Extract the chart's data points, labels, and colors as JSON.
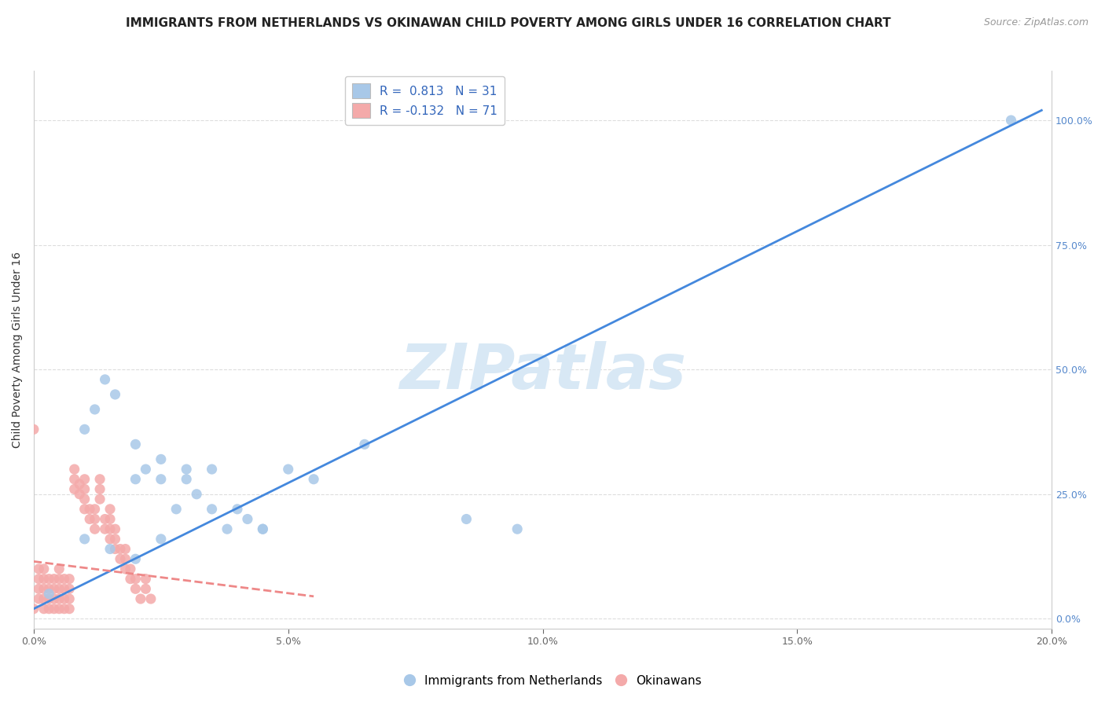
{
  "title": "IMMIGRANTS FROM NETHERLANDS VS OKINAWAN CHILD POVERTY AMONG GIRLS UNDER 16 CORRELATION CHART",
  "source": "Source: ZipAtlas.com",
  "ylabel": "Child Poverty Among Girls Under 16",
  "xlim": [
    0.0,
    0.2
  ],
  "ylim": [
    -0.02,
    1.1
  ],
  "x_ticks": [
    0.0,
    0.05,
    0.1,
    0.15,
    0.2
  ],
  "x_tick_labels": [
    "0.0%",
    "5.0%",
    "10.0%",
    "15.0%",
    "20.0%"
  ],
  "y_ticks_right": [
    0.0,
    0.25,
    0.5,
    0.75,
    1.0
  ],
  "y_tick_labels_right": [
    "0.0%",
    "25.0%",
    "50.0%",
    "75.0%",
    "100.0%"
  ],
  "blue_color": "#A8C8E8",
  "pink_color": "#F4AAAA",
  "blue_line_color": "#4488DD",
  "pink_line_color": "#EE8888",
  "legend_r_blue": "0.813",
  "legend_n_blue": "31",
  "legend_r_pink": "-0.132",
  "legend_n_pink": "71",
  "watermark": "ZIPatlas",
  "watermark_color": "#D8E8F5",
  "blue_scatter_x": [
    0.003,
    0.01,
    0.012,
    0.014,
    0.016,
    0.02,
    0.022,
    0.025,
    0.028,
    0.03,
    0.032,
    0.035,
    0.038,
    0.042,
    0.045,
    0.02,
    0.025,
    0.03,
    0.035,
    0.04,
    0.045,
    0.05,
    0.055,
    0.065,
    0.085,
    0.095,
    0.01,
    0.015,
    0.02,
    0.025,
    0.192
  ],
  "blue_scatter_y": [
    0.05,
    0.38,
    0.42,
    0.48,
    0.45,
    0.28,
    0.3,
    0.28,
    0.22,
    0.28,
    0.25,
    0.22,
    0.18,
    0.2,
    0.18,
    0.35,
    0.32,
    0.3,
    0.3,
    0.22,
    0.18,
    0.3,
    0.28,
    0.35,
    0.2,
    0.18,
    0.16,
    0.14,
    0.12,
    0.16,
    1.0
  ],
  "pink_scatter_x": [
    0.0,
    0.001,
    0.001,
    0.001,
    0.001,
    0.002,
    0.002,
    0.002,
    0.002,
    0.002,
    0.003,
    0.003,
    0.003,
    0.003,
    0.004,
    0.004,
    0.004,
    0.004,
    0.005,
    0.005,
    0.005,
    0.005,
    0.005,
    0.006,
    0.006,
    0.006,
    0.006,
    0.007,
    0.007,
    0.007,
    0.007,
    0.008,
    0.008,
    0.008,
    0.009,
    0.009,
    0.01,
    0.01,
    0.01,
    0.01,
    0.011,
    0.011,
    0.012,
    0.012,
    0.012,
    0.013,
    0.013,
    0.013,
    0.014,
    0.014,
    0.015,
    0.015,
    0.015,
    0.015,
    0.016,
    0.016,
    0.016,
    0.017,
    0.017,
    0.018,
    0.018,
    0.018,
    0.019,
    0.019,
    0.02,
    0.02,
    0.021,
    0.022,
    0.022,
    0.023,
    0.0
  ],
  "pink_scatter_y": [
    0.38,
    0.06,
    0.04,
    0.08,
    0.1,
    0.02,
    0.04,
    0.06,
    0.08,
    0.1,
    0.02,
    0.04,
    0.06,
    0.08,
    0.02,
    0.04,
    0.06,
    0.08,
    0.02,
    0.04,
    0.06,
    0.08,
    0.1,
    0.02,
    0.04,
    0.06,
    0.08,
    0.02,
    0.04,
    0.06,
    0.08,
    0.26,
    0.28,
    0.3,
    0.25,
    0.27,
    0.22,
    0.24,
    0.26,
    0.28,
    0.2,
    0.22,
    0.18,
    0.2,
    0.22,
    0.26,
    0.28,
    0.24,
    0.18,
    0.2,
    0.16,
    0.18,
    0.2,
    0.22,
    0.14,
    0.16,
    0.18,
    0.12,
    0.14,
    0.1,
    0.12,
    0.14,
    0.08,
    0.1,
    0.06,
    0.08,
    0.04,
    0.06,
    0.08,
    0.04,
    0.02
  ],
  "blue_line_x": [
    0.0,
    0.198
  ],
  "blue_line_y": [
    0.02,
    1.02
  ],
  "pink_line_x": [
    0.0,
    0.055
  ],
  "pink_line_y": [
    0.115,
    0.045
  ],
  "grid_color": "#DDDDDD",
  "background_color": "#FFFFFF",
  "title_fontsize": 11,
  "axis_label_fontsize": 10,
  "tick_fontsize": 9,
  "legend_fontsize": 11,
  "source_fontsize": 9
}
